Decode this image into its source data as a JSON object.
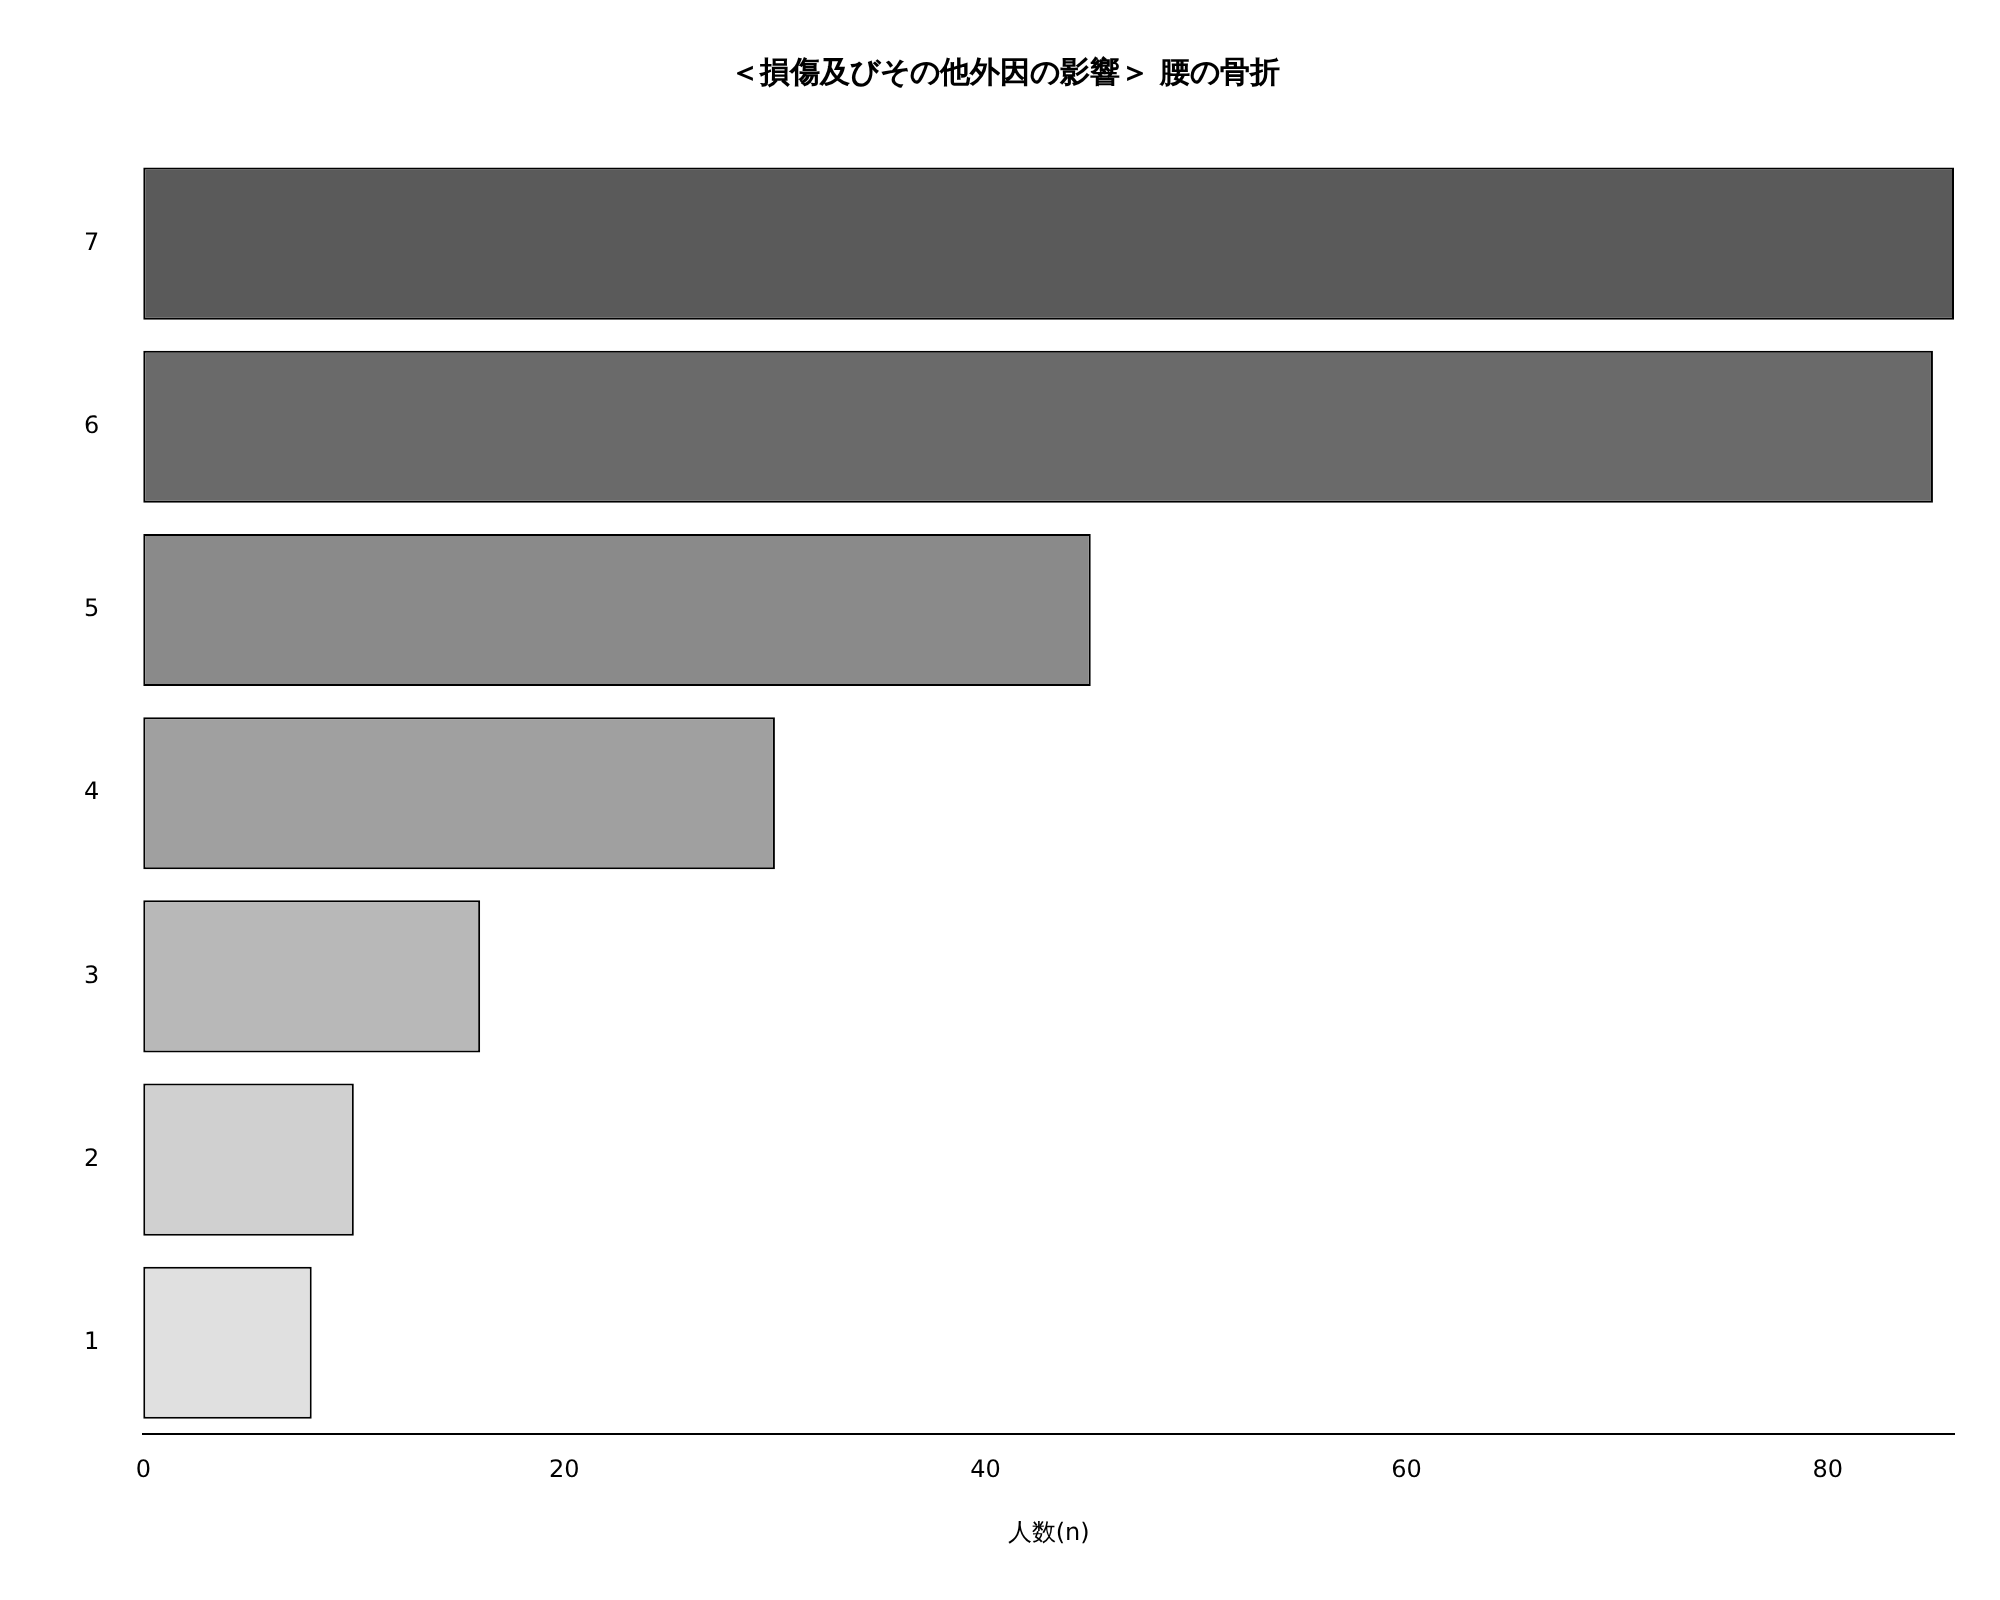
{
  "chart_data": {
    "type": "bar",
    "orientation": "horizontal",
    "title": "＜損傷及びその他外因の影響＞ 腰の骨折",
    "xlabel": "人数(n)",
    "categories": [
      "7",
      "6",
      "5",
      "4",
      "3",
      "2",
      "1"
    ],
    "values": [
      86,
      85,
      45,
      30,
      16,
      10,
      8
    ],
    "colors": [
      "#5a5a5a",
      "#6a6a6a",
      "#8a8a8a",
      "#a0a0a0",
      "#b8b8b8",
      "#d0d0d0",
      "#e0e0e0"
    ],
    "xlim": [
      0,
      86
    ],
    "xticks": [
      0,
      20,
      40,
      60,
      80
    ],
    "grid": false,
    "legend": false
  }
}
